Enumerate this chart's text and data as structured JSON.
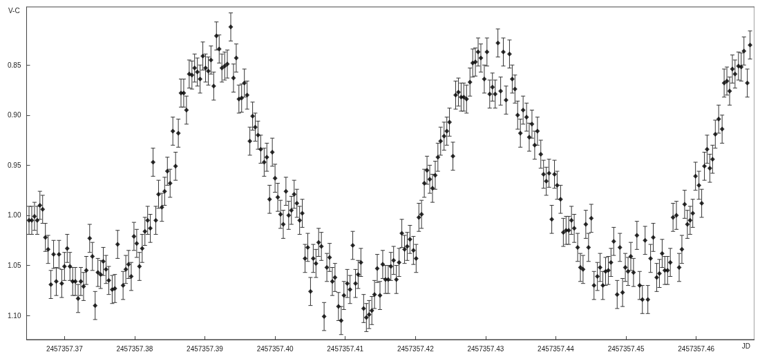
{
  "chart_data": {
    "type": "scatter",
    "xlabel": "JD",
    "ylabel": "V-C",
    "marker": "diamond",
    "grid": false,
    "legend": false,
    "xlim": [
      2457357.3646,
      2457357.4683
    ],
    "ylim": [
      1.124,
      0.792
    ],
    "xticks": [
      2457357.37,
      2457357.38,
      2457357.39,
      {
        "value": 2457357.4,
        "label": "2457357.40"
      },
      2457357.41,
      2457357.42,
      2457357.43,
      2457357.44,
      2457357.45,
      2457357.46
    ],
    "yticks": [
      {
        "value": 0.85,
        "label": "0.85"
      },
      {
        "value": 0.9,
        "label": "0.90"
      },
      {
        "value": 0.95,
        "label": "0.95"
      },
      {
        "value": 1.0,
        "label": "1.00"
      },
      {
        "value": 1.05,
        "label": "1.05"
      },
      {
        "value": 1.1,
        "label": "1.10"
      }
    ],
    "series": [
      {
        "color": "#000000",
        "x": [
          2457357.36495,
          2457357.36534,
          2457357.36573,
          2457357.36612,
          2457357.3665,
          2457357.36689,
          2457357.36728,
          2457357.36767,
          2457357.36806,
          2457357.36845,
          2457357.36883,
          2457357.36922,
          2457357.36961,
          2457357.37,
          2457357.37039,
          2457357.37078,
          2457357.37117,
          2457357.37155,
          2457357.37194,
          2457357.37233,
          2457357.37272,
          2457357.37311,
          2457357.37359,
          2457357.37398,
          2457357.37437,
          2457357.37476,
          2457357.37515,
          2457357.37553,
          2457357.37592,
          2457357.37631,
          2457357.3768,
          2457357.37718,
          2457357.37757,
          2457357.37835,
          2457357.37874,
          2457357.37913,
          2457357.37951,
          2457357.3799,
          2457357.38029,
          2457357.38068,
          2457357.38107,
          2457357.38146,
          2457357.38185,
          2457357.38223,
          2457357.38262,
          2457357.38301,
          2457357.3834,
          2457357.38388,
          2457357.38427,
          2457357.38466,
          2457357.38505,
          2457357.38544,
          2457357.38583,
          2457357.38622,
          2457357.3866,
          2457357.38699,
          2457357.38738,
          2457357.38777,
          2457357.38816,
          2457357.38854,
          2457357.38893,
          2457357.38932,
          2457357.38971,
          2457357.3901,
          2457357.39049,
          2457357.39087,
          2457357.39126,
          2457357.39165,
          2457357.39204,
          2457357.39243,
          2457357.39282,
          2457357.3932,
          2457357.39369,
          2457357.39408,
          2457357.39447,
          2457357.39485,
          2457357.39524,
          2457357.39563,
          2457357.39602,
          2457357.39641,
          2457357.3968,
          2457357.39718,
          2457357.39757,
          2457357.39796,
          2457357.39845,
          2457357.39883,
          2457357.39922,
          2457357.39961,
          2457357.4,
          2457357.40039,
          2457357.40078,
          2457357.40117,
          2457357.40155,
          2457357.40194,
          2457357.40233,
          2457357.40272,
          2457357.40311,
          2457357.4035,
          2457357.40388,
          2457357.40427,
          2457357.40466,
          2457357.40505,
          2457357.40544,
          2457357.40583,
          2457357.40621,
          2457357.4066,
          2457357.40699,
          2457357.40738,
          2457357.40777,
          2457357.40816,
          2457357.40854,
          2457357.40903,
          2457357.40942,
          2457357.40981,
          2457357.41029,
          2457357.41068,
          2457357.41107,
          2457357.41146,
          2457357.41184,
          2457357.41223,
          2457357.41262,
          2457357.41301,
          2457357.4134,
          2457357.41379,
          2457357.41417,
          2457357.41456,
          2457357.41495,
          2457357.41534,
          2457357.41573,
          2457357.41612,
          2457357.4165,
          2457357.41689,
          2457357.41728,
          2457357.41767,
          2457357.41806,
          2457357.41845,
          2457357.41883,
          2457357.41922,
          2457357.41971,
          2457357.4201,
          2457357.42049,
          2457357.42087,
          2457357.42126,
          2457357.42165,
          2457357.42204,
          2457357.42243,
          2457357.42282,
          2457357.4232,
          2457357.42359,
          2457357.42408,
          2457357.42447,
          2457357.42485,
          2457357.42534,
          2457357.42573,
          2457357.42612,
          2457357.42651,
          2457357.42689,
          2457357.42728,
          2457357.42777,
          2457357.42816,
          2457357.42854,
          2457357.42893,
          2457357.42932,
          2457357.42981,
          2457357.43019,
          2457357.43058,
          2457357.43097,
          2457357.43136,
          2457357.43175,
          2457357.43214,
          2457357.43252,
          2457357.43291,
          2457357.4334,
          2457357.43379,
          2457357.43418,
          2457357.43456,
          2457357.43495,
          2457357.43534,
          2457357.43583,
          2457357.43621,
          2457357.4366,
          2457357.43699,
          2457357.43738,
          2457357.43786,
          2457357.43825,
          2457357.43864,
          2457357.43903,
          2457357.43942,
          2457357.43981,
          2457357.44019,
          2457357.44068,
          2457357.44107,
          2457357.44146,
          2457357.44184,
          2457357.44223,
          2457357.44262,
          2457357.44311,
          2457357.4435,
          2457357.44388,
          2457357.44427,
          2457357.44466,
          2457357.44505,
          2457357.44544,
          2457357.44592,
          2457357.44631,
          2457357.4467,
          2457357.44709,
          2457357.44748,
          2457357.44786,
          2457357.44825,
          2457357.44874,
          2457357.44913,
          2457357.44951,
          2457357.4499,
          2457357.45029,
          2457357.45068,
          2457357.45107,
          2457357.45155,
          2457357.45194,
          2457357.45233,
          2457357.45272,
          2457357.45311,
          2457357.4535,
          2457357.45388,
          2457357.45437,
          2457357.45476,
          2457357.45515,
          2457357.45553,
          2457357.45592,
          2457357.45631,
          2457357.4567,
          2457357.45718,
          2457357.45757,
          2457357.45796,
          2457357.45835,
          2457357.45874,
          2457357.45913,
          2457357.45951,
          2457357.4599,
          2457357.46039,
          2457357.46078,
          2457357.46117,
          2457357.46155,
          2457357.46194,
          2457357.46233,
          2457357.46272,
          2457357.4632,
          2457357.46369,
          2457357.46398,
          2457357.46437,
          2457357.46476,
          2457357.46515,
          2457357.46553,
          2457357.46602,
          2457357.46641,
          2457357.4668,
          2457357.46728,
          2457357.46767
        ],
        "values": [
          1.005,
          1.005,
          1.001,
          1.005,
          0.99,
          0.994,
          1.022,
          1.034,
          1.069,
          1.039,
          1.066,
          1.039,
          1.068,
          1.051,
          1.033,
          1.051,
          1.066,
          1.066,
          1.083,
          1.066,
          1.071,
          1.055,
          1.023,
          1.041,
          1.09,
          1.057,
          1.059,
          1.046,
          1.054,
          1.065,
          1.074,
          1.073,
          1.029,
          1.07,
          1.054,
          1.049,
          1.061,
          1.021,
          1.028,
          1.051,
          1.033,
          1.016,
          1.005,
          1.013,
          0.947,
          1.005,
          0.979,
          0.992,
          0.976,
          0.956,
          0.968,
          0.916,
          0.951,
          0.918,
          0.878,
          0.878,
          0.895,
          0.859,
          0.86,
          0.853,
          0.857,
          0.864,
          0.841,
          0.853,
          0.856,
          0.845,
          0.871,
          0.821,
          0.834,
          0.853,
          0.851,
          0.849,
          0.812,
          0.863,
          0.843,
          0.884,
          0.883,
          0.868,
          0.88,
          0.926,
          0.901,
          0.912,
          0.92,
          0.934,
          0.947,
          0.942,
          0.984,
          0.937,
          0.963,
          0.982,
          0.999,
          1.009,
          0.976,
          1.0,
          0.995,
          0.979,
          0.988,
          1.005,
          0.998,
          1.043,
          1.032,
          1.076,
          1.043,
          1.048,
          1.027,
          1.031,
          1.101,
          1.052,
          1.042,
          1.066,
          1.062,
          1.091,
          1.105,
          1.08,
          1.068,
          1.074,
          1.03,
          1.068,
          1.059,
          1.047,
          1.093,
          1.102,
          1.099,
          1.095,
          1.079,
          1.053,
          1.08,
          1.049,
          1.064,
          1.064,
          1.051,
          1.045,
          1.064,
          1.047,
          1.018,
          1.034,
          1.031,
          1.024,
          1.035,
          1.043,
          1.002,
          0.999,
          0.968,
          0.955,
          0.964,
          0.973,
          0.96,
          0.942,
          0.926,
          0.921,
          0.916,
          0.907,
          0.941,
          0.88,
          0.877,
          0.882,
          0.882,
          0.884,
          0.867,
          0.848,
          0.847,
          0.837,
          0.843,
          0.864,
          0.837,
          0.879,
          0.872,
          0.879,
          0.828,
          0.876,
          0.837,
          0.885,
          0.839,
          0.864,
          0.874,
          0.9,
          0.918,
          0.895,
          0.902,
          0.922,
          0.909,
          0.93,
          0.916,
          0.939,
          0.959,
          0.966,
          0.958,
          1.004,
          0.959,
          0.97,
          0.984,
          1.017,
          1.015,
          1.015,
          1.005,
          1.013,
          1.032,
          1.052,
          1.054,
          1.009,
          1.032,
          1.003,
          1.07,
          1.061,
          1.052,
          1.07,
          1.056,
          1.055,
          1.047,
          1.026,
          1.079,
          1.032,
          1.077,
          1.052,
          1.056,
          1.041,
          1.057,
          1.02,
          1.07,
          1.084,
          1.025,
          1.084,
          1.043,
          1.022,
          1.062,
          1.058,
          1.038,
          1.055,
          1.055,
          1.047,
          1.002,
          1.0,
          1.052,
          1.034,
          0.989,
          1.009,
          1.005,
          0.998,
          0.961,
          0.97,
          0.988,
          0.951,
          0.934,
          0.953,
          0.944,
          0.919,
          0.904,
          0.914,
          0.868,
          0.866,
          0.876,
          0.854,
          0.859,
          0.851,
          0.852,
          0.836,
          0.868,
          0.83
        ],
        "errors": [
          0.014,
          0.014,
          0.014,
          0.014,
          0.014,
          0.014,
          0.014,
          0.014,
          0.014,
          0.014,
          0.014,
          0.014,
          0.014,
          0.014,
          0.014,
          0.014,
          0.014,
          0.014,
          0.014,
          0.014,
          0.014,
          0.014,
          0.014,
          0.014,
          0.014,
          0.014,
          0.014,
          0.014,
          0.014,
          0.014,
          0.014,
          0.014,
          0.014,
          0.014,
          0.014,
          0.014,
          0.014,
          0.014,
          0.014,
          0.014,
          0.014,
          0.014,
          0.014,
          0.014,
          0.014,
          0.014,
          0.014,
          0.014,
          0.014,
          0.014,
          0.014,
          0.014,
          0.014,
          0.014,
          0.014,
          0.014,
          0.014,
          0.014,
          0.014,
          0.014,
          0.014,
          0.014,
          0.014,
          0.014,
          0.014,
          0.014,
          0.014,
          0.014,
          0.014,
          0.014,
          0.014,
          0.014,
          0.014,
          0.014,
          0.014,
          0.014,
          0.014,
          0.014,
          0.014,
          0.014,
          0.014,
          0.014,
          0.014,
          0.014,
          0.014,
          0.014,
          0.014,
          0.014,
          0.014,
          0.014,
          0.014,
          0.014,
          0.014,
          0.014,
          0.014,
          0.014,
          0.014,
          0.014,
          0.014,
          0.014,
          0.014,
          0.014,
          0.014,
          0.014,
          0.014,
          0.014,
          0.014,
          0.014,
          0.014,
          0.014,
          0.014,
          0.014,
          0.014,
          0.014,
          0.014,
          0.014,
          0.014,
          0.014,
          0.014,
          0.014,
          0.014,
          0.014,
          0.014,
          0.014,
          0.014,
          0.014,
          0.014,
          0.014,
          0.014,
          0.014,
          0.014,
          0.014,
          0.014,
          0.014,
          0.014,
          0.014,
          0.014,
          0.014,
          0.014,
          0.014,
          0.014,
          0.014,
          0.014,
          0.014,
          0.014,
          0.014,
          0.014,
          0.014,
          0.014,
          0.014,
          0.014,
          0.014,
          0.014,
          0.014,
          0.014,
          0.014,
          0.014,
          0.014,
          0.014,
          0.014,
          0.014,
          0.014,
          0.014,
          0.014,
          0.014,
          0.014,
          0.014,
          0.014,
          0.014,
          0.014,
          0.014,
          0.014,
          0.014,
          0.014,
          0.014,
          0.014,
          0.014,
          0.014,
          0.014,
          0.014,
          0.014,
          0.014,
          0.014,
          0.014,
          0.014,
          0.014,
          0.014,
          0.014,
          0.014,
          0.014,
          0.014,
          0.014,
          0.014,
          0.014,
          0.014,
          0.014,
          0.014,
          0.014,
          0.014,
          0.014,
          0.014,
          0.014,
          0.014,
          0.014,
          0.014,
          0.014,
          0.014,
          0.014,
          0.014,
          0.014,
          0.014,
          0.014,
          0.014,
          0.014,
          0.014,
          0.014,
          0.014,
          0.014,
          0.014,
          0.014,
          0.014,
          0.014,
          0.014,
          0.014,
          0.014,
          0.014,
          0.014,
          0.014,
          0.014,
          0.014,
          0.014,
          0.014,
          0.014,
          0.014,
          0.014,
          0.014,
          0.014,
          0.014,
          0.014,
          0.014,
          0.014,
          0.014,
          0.014,
          0.014,
          0.014,
          0.014,
          0.014,
          0.014,
          0.014,
          0.014,
          0.014,
          0.014,
          0.014,
          0.014,
          0.014,
          0.014,
          0.014,
          0.014
        ]
      }
    ]
  }
}
